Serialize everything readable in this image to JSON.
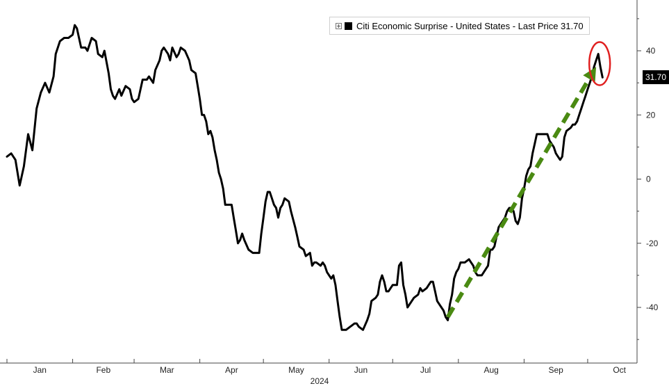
{
  "legend": {
    "label": "Citi Economic Surprise - United States - Last Price 31.70"
  },
  "last_price_tag": "31.70",
  "colors": {
    "line": "#000000",
    "arrow": "#4a8a12",
    "highlight": "#e02020",
    "tick": "#555555"
  },
  "chart_data": {
    "type": "line",
    "title": "",
    "xlabel": "2024",
    "ylabel": "",
    "ylim": [
      -55,
      55
    ],
    "yticks": [
      -40,
      -20,
      0,
      20,
      40
    ],
    "xlim": [
      0,
      295
    ],
    "xticks": [
      {
        "label": "Jan",
        "x": 0
      },
      {
        "label": "Feb",
        "x": 31
      },
      {
        "label": "Mar",
        "x": 60
      },
      {
        "label": "Apr",
        "x": 91
      },
      {
        "label": "May",
        "x": 121
      },
      {
        "label": "Jun",
        "x": 152
      },
      {
        "label": "Jul",
        "x": 182
      },
      {
        "label": "Aug",
        "x": 213
      },
      {
        "label": "Sep",
        "x": 244
      },
      {
        "label": "Oct",
        "x": 274
      }
    ],
    "grid": false,
    "legend_position": "top-right",
    "series": [
      {
        "name": "Citi Economic Surprise - United States",
        "last_value": 31.7,
        "points": [
          [
            0,
            7
          ],
          [
            2,
            8
          ],
          [
            4,
            6
          ],
          [
            6,
            -2
          ],
          [
            8,
            4
          ],
          [
            10,
            14
          ],
          [
            12,
            9
          ],
          [
            14,
            22
          ],
          [
            16,
            27
          ],
          [
            18,
            30
          ],
          [
            20,
            27
          ],
          [
            22,
            32
          ],
          [
            23,
            39
          ],
          [
            25,
            43
          ],
          [
            27,
            44
          ],
          [
            29,
            44
          ],
          [
            31,
            45
          ],
          [
            32,
            48
          ],
          [
            33,
            47
          ],
          [
            35,
            41
          ],
          [
            37,
            41
          ],
          [
            38,
            40
          ],
          [
            40,
            44
          ],
          [
            42,
            43
          ],
          [
            43,
            39
          ],
          [
            45,
            38
          ],
          [
            46,
            40
          ],
          [
            48,
            33
          ],
          [
            49,
            28
          ],
          [
            50,
            26
          ],
          [
            51,
            25
          ],
          [
            53,
            28
          ],
          [
            54,
            26
          ],
          [
            56,
            29
          ],
          [
            58,
            28
          ],
          [
            59,
            25
          ],
          [
            60,
            24
          ],
          [
            62,
            25
          ],
          [
            64,
            31
          ],
          [
            66,
            31
          ],
          [
            67,
            32
          ],
          [
            68,
            31
          ],
          [
            69,
            30
          ],
          [
            70,
            34
          ],
          [
            72,
            37
          ],
          [
            73,
            40
          ],
          [
            74,
            41
          ],
          [
            76,
            39
          ],
          [
            77,
            37
          ],
          [
            78,
            41
          ],
          [
            80,
            38
          ],
          [
            81,
            39
          ],
          [
            82,
            41
          ],
          [
            84,
            40
          ],
          [
            86,
            37
          ],
          [
            87,
            34
          ],
          [
            89,
            33
          ],
          [
            90,
            29
          ],
          [
            91,
            25
          ],
          [
            92,
            20
          ],
          [
            93,
            20
          ],
          [
            94,
            18
          ],
          [
            95,
            14
          ],
          [
            96,
            15
          ],
          [
            97,
            13
          ],
          [
            98,
            9
          ],
          [
            99,
            6
          ],
          [
            100,
            2
          ],
          [
            101,
            0
          ],
          [
            102,
            -3
          ],
          [
            103,
            -8
          ],
          [
            104,
            -8
          ],
          [
            106,
            -8
          ],
          [
            107,
            -12
          ],
          [
            108,
            -16
          ],
          [
            109,
            -20
          ],
          [
            110,
            -19
          ],
          [
            111,
            -17
          ],
          [
            112,
            -19
          ],
          [
            114,
            -22
          ],
          [
            116,
            -23
          ],
          [
            118,
            -23
          ],
          [
            119,
            -23
          ],
          [
            120,
            -17
          ],
          [
            121,
            -12
          ],
          [
            122,
            -7
          ],
          [
            123,
            -4
          ],
          [
            124,
            -4
          ],
          [
            125,
            -6
          ],
          [
            126,
            -8
          ],
          [
            127,
            -9
          ],
          [
            128,
            -12
          ],
          [
            129,
            -9
          ],
          [
            130,
            -8
          ],
          [
            131,
            -6
          ],
          [
            133,
            -7
          ],
          [
            134,
            -10
          ],
          [
            136,
            -15
          ],
          [
            137,
            -18
          ],
          [
            138,
            -21
          ],
          [
            140,
            -22
          ],
          [
            141,
            -24
          ],
          [
            143,
            -23
          ],
          [
            144,
            -27
          ],
          [
            145,
            -26
          ],
          [
            146,
            -26
          ],
          [
            148,
            -27
          ],
          [
            149,
            -26
          ],
          [
            150,
            -27
          ],
          [
            151,
            -29
          ],
          [
            153,
            -31
          ],
          [
            154,
            -30
          ],
          [
            155,
            -33
          ],
          [
            156,
            -38
          ],
          [
            157,
            -43
          ],
          [
            158,
            -47
          ],
          [
            160,
            -47
          ],
          [
            162,
            -46
          ],
          [
            164,
            -45
          ],
          [
            165,
            -45
          ],
          [
            166,
            -46
          ],
          [
            168,
            -47
          ],
          [
            170,
            -44
          ],
          [
            171,
            -42
          ],
          [
            172,
            -38
          ],
          [
            174,
            -37
          ],
          [
            175,
            -36
          ],
          [
            176,
            -32
          ],
          [
            177,
            -30
          ],
          [
            178,
            -32
          ],
          [
            179,
            -35
          ],
          [
            180,
            -35
          ],
          [
            182,
            -33
          ],
          [
            184,
            -33
          ],
          [
            185,
            -27
          ],
          [
            186,
            -26
          ],
          [
            187,
            -33
          ],
          [
            188,
            -36
          ],
          [
            189,
            -40
          ],
          [
            190,
            -39
          ],
          [
            192,
            -37
          ],
          [
            194,
            -36
          ],
          [
            195,
            -34
          ],
          [
            196,
            -35
          ],
          [
            198,
            -34
          ],
          [
            199,
            -33
          ],
          [
            200,
            -32
          ],
          [
            201,
            -32
          ],
          [
            202,
            -35
          ],
          [
            203,
            -38
          ],
          [
            205,
            -40
          ],
          [
            206,
            -41
          ],
          [
            207,
            -43
          ],
          [
            208,
            -44
          ],
          [
            209,
            -39
          ],
          [
            210,
            -36
          ],
          [
            211,
            -31
          ],
          [
            212,
            -29
          ],
          [
            213,
            -28
          ],
          [
            214,
            -26
          ],
          [
            216,
            -26
          ],
          [
            218,
            -25
          ],
          [
            219,
            -26
          ],
          [
            220,
            -27
          ],
          [
            221,
            -29
          ],
          [
            222,
            -30
          ],
          [
            224,
            -30
          ],
          [
            226,
            -28
          ],
          [
            227,
            -27
          ],
          [
            228,
            -22
          ],
          [
            229,
            -22
          ],
          [
            230,
            -21
          ],
          [
            231,
            -18
          ],
          [
            232,
            -15
          ],
          [
            233,
            -14
          ],
          [
            234,
            -13
          ],
          [
            235,
            -12
          ],
          [
            236,
            -10
          ],
          [
            237,
            -9
          ],
          [
            238,
            -9
          ],
          [
            239,
            -10
          ],
          [
            240,
            -13
          ],
          [
            241,
            -14
          ],
          [
            242,
            -12
          ],
          [
            243,
            -6
          ],
          [
            244,
            -3
          ],
          [
            245,
            1
          ],
          [
            246,
            3
          ],
          [
            247,
            4
          ],
          [
            248,
            8
          ],
          [
            249,
            11
          ],
          [
            250,
            14
          ],
          [
            252,
            14
          ],
          [
            254,
            14
          ],
          [
            255,
            14
          ],
          [
            256,
            12
          ],
          [
            258,
            10
          ],
          [
            259,
            8
          ],
          [
            260,
            7
          ],
          [
            261,
            6
          ],
          [
            262,
            7
          ],
          [
            263,
            13
          ],
          [
            264,
            15
          ],
          [
            266,
            16
          ],
          [
            267,
            17
          ],
          [
            268,
            17
          ],
          [
            269,
            18
          ],
          [
            270,
            20
          ],
          [
            271,
            22
          ],
          [
            272,
            24
          ],
          [
            273,
            26
          ],
          [
            274,
            28
          ],
          [
            275,
            30
          ],
          [
            276,
            32
          ],
          [
            277,
            35
          ],
          [
            278,
            37
          ],
          [
            279,
            39
          ],
          [
            280,
            35
          ],
          [
            281,
            31.7
          ]
        ]
      }
    ],
    "annotations": [
      {
        "type": "trend-arrow",
        "color": "green",
        "from": [
          208,
          -43
        ],
        "to": [
          278,
          35
        ]
      },
      {
        "type": "highlight-ellipse",
        "color": "red",
        "at": [
          279,
          36
        ]
      }
    ]
  }
}
